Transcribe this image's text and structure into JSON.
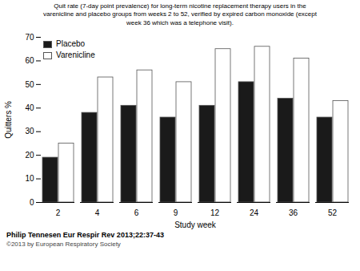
{
  "chart_data": {
    "type": "bar",
    "title": "Quit rate (7-day point prevalence) for long-term nicotine replacement therapy users in the\nvarenicline and placebo groups from weeks 2 to 52, verified by expired carbon monoxide (except\nweek 36 which was a telephone visit).",
    "xlabel": "Study week",
    "ylabel": "Quitters %",
    "categories": [
      "2",
      "4",
      "6",
      "9",
      "12",
      "24",
      "36",
      "52"
    ],
    "series": [
      {
        "name": "Placebo",
        "color": "#1a1a1a",
        "values": [
          19,
          38,
          41,
          36,
          41,
          51,
          44,
          36
        ]
      },
      {
        "name": "Varenicline",
        "color": "#ffffff",
        "values": [
          25,
          53,
          56,
          51,
          65,
          66,
          61,
          43
        ]
      }
    ],
    "ylim": [
      0,
      70
    ],
    "yticks": [
      0,
      10,
      20,
      30,
      40,
      50,
      60,
      70
    ],
    "legend": "upper left",
    "annotations": [
      "Philip Tennesen Eur Respir Rev 2013;22:37-43",
      "©2013 by European Respiratory Society"
    ]
  }
}
